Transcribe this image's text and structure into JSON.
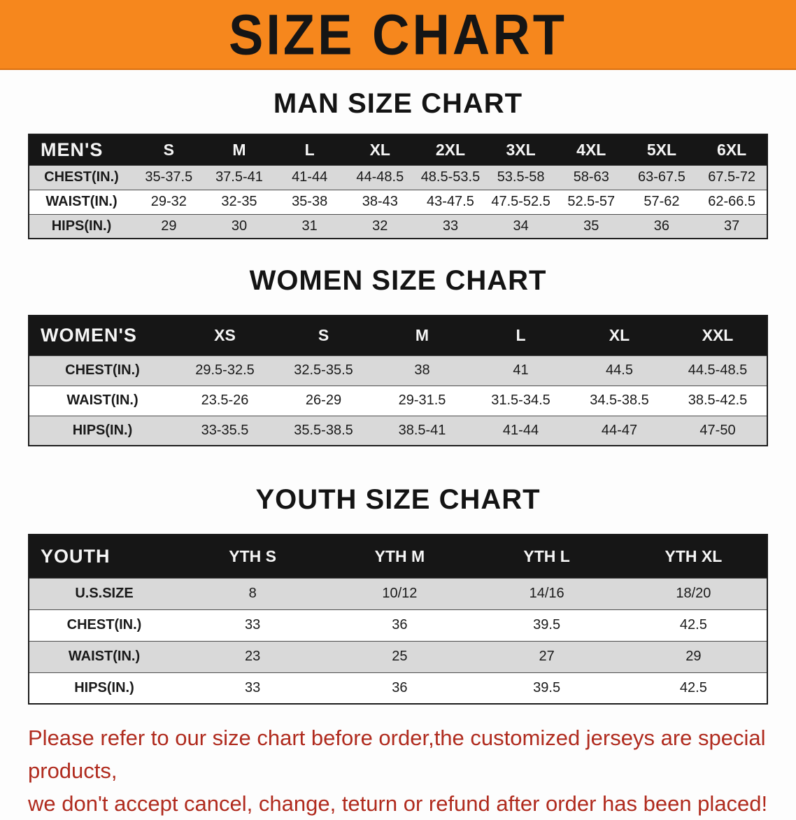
{
  "banner": {
    "title": "SIZE CHART"
  },
  "sections": [
    {
      "id": "mens",
      "heading": "MAN SIZE CHART",
      "header_label": "MEN'S",
      "columns": [
        "S",
        "M",
        "L",
        "XL",
        "2XL",
        "3XL",
        "4XL",
        "5XL",
        "6XL"
      ],
      "rows": [
        {
          "label": "CHEST(IN.)",
          "values": [
            "35-37.5",
            "37.5-41",
            "41-44",
            "44-48.5",
            "48.5-53.5",
            "53.5-58",
            "58-63",
            "63-67.5",
            "67.5-72"
          ]
        },
        {
          "label": "WAIST(IN.)",
          "values": [
            "29-32",
            "32-35",
            "35-38",
            "38-43",
            "43-47.5",
            "47.5-52.5",
            "52.5-57",
            "57-62",
            "62-66.5"
          ]
        },
        {
          "label": "HIPS(IN.)",
          "values": [
            "29",
            "30",
            "31",
            "32",
            "33",
            "34",
            "35",
            "36",
            "37"
          ]
        }
      ]
    },
    {
      "id": "womens",
      "heading": "WOMEN SIZE CHART",
      "header_label": "WOMEN'S",
      "columns": [
        "XS",
        "S",
        "M",
        "L",
        "XL",
        "XXL"
      ],
      "rows": [
        {
          "label": "CHEST(IN.)",
          "values": [
            "29.5-32.5",
            "32.5-35.5",
            "38",
            "41",
            "44.5",
            "44.5-48.5"
          ]
        },
        {
          "label": "WAIST(IN.)",
          "values": [
            "23.5-26",
            "26-29",
            "29-31.5",
            "31.5-34.5",
            "34.5-38.5",
            "38.5-42.5"
          ]
        },
        {
          "label": "HIPS(IN.)",
          "values": [
            "33-35.5",
            "35.5-38.5",
            "38.5-41",
            "41-44",
            "44-47",
            "47-50"
          ]
        }
      ]
    },
    {
      "id": "youth",
      "heading": "YOUTH SIZE CHART",
      "header_label": "YOUTH",
      "columns": [
        "YTH S",
        "YTH M",
        "YTH L",
        "YTH XL"
      ],
      "rows": [
        {
          "label": "U.S.SIZE",
          "values": [
            "8",
            "10/12",
            "14/16",
            "18/20"
          ]
        },
        {
          "label": "CHEST(IN.)",
          "values": [
            "33",
            "36",
            "39.5",
            "42.5"
          ]
        },
        {
          "label": "WAIST(IN.)",
          "values": [
            "23",
            "25",
            "27",
            "29"
          ]
        },
        {
          "label": "HIPS(IN.)",
          "values": [
            "33",
            "36",
            "39.5",
            "42.5"
          ]
        }
      ]
    }
  ],
  "footer": {
    "lines": [
      "Please refer to our size chart before order,the customized jerseys are special products,",
      "we don't accept cancel, change, teturn or refund after order has been placed!"
    ]
  },
  "colors": {
    "banner_bg": "#f6871d",
    "table_header_bg": "#161616",
    "row_alt": "#d9d9d9",
    "notice_text": "#b02b1e"
  }
}
